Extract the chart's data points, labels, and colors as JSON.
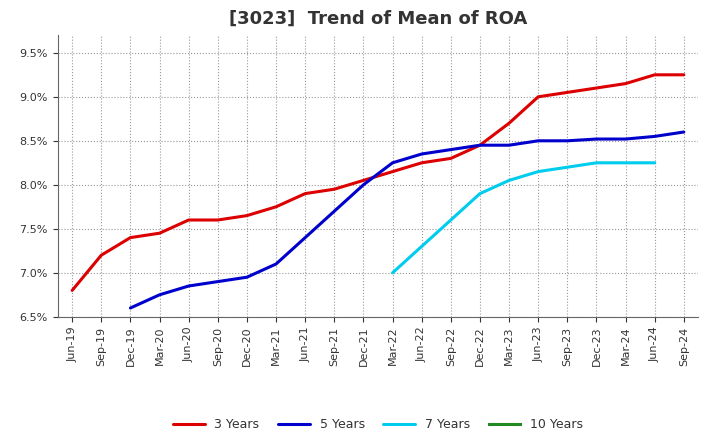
{
  "title": "[3023]  Trend of Mean of ROA",
  "background_color": "#ffffff",
  "grid_color": "#999999",
  "ylim": [
    0.065,
    0.097
  ],
  "yticks": [
    0.065,
    0.07,
    0.075,
    0.08,
    0.085,
    0.09,
    0.095
  ],
  "x_labels": [
    "Jun-19",
    "Sep-19",
    "Dec-19",
    "Mar-20",
    "Jun-20",
    "Sep-20",
    "Dec-20",
    "Mar-21",
    "Jun-21",
    "Sep-21",
    "Dec-21",
    "Mar-22",
    "Jun-22",
    "Sep-22",
    "Dec-22",
    "Mar-23",
    "Jun-23",
    "Sep-23",
    "Dec-23",
    "Mar-24",
    "Jun-24",
    "Sep-24"
  ],
  "series": [
    {
      "label": "3 Years",
      "color": "#dd0000",
      "data_x": [
        0,
        1,
        2,
        3,
        4,
        5,
        6,
        7,
        8,
        9,
        10,
        11,
        12,
        13,
        14,
        15,
        16,
        17,
        18,
        19,
        20,
        21
      ],
      "data_y": [
        0.068,
        0.072,
        0.074,
        0.0745,
        0.076,
        0.076,
        0.0765,
        0.0775,
        0.079,
        0.0795,
        0.0805,
        0.0815,
        0.0825,
        0.083,
        0.0845,
        0.087,
        0.09,
        0.0905,
        0.091,
        0.0915,
        0.0925,
        0.0925
      ]
    },
    {
      "label": "5 Years",
      "color": "#0000cc",
      "data_x": [
        2,
        3,
        4,
        5,
        6,
        7,
        8,
        9,
        10,
        11,
        12,
        13,
        14,
        15,
        16,
        17,
        18,
        19,
        20,
        21
      ],
      "data_y": [
        0.066,
        0.0675,
        0.0685,
        0.069,
        0.0695,
        0.071,
        0.074,
        0.077,
        0.08,
        0.0825,
        0.0835,
        0.084,
        0.0845,
        0.0845,
        0.085,
        0.085,
        0.0852,
        0.0852,
        0.0855,
        0.086
      ]
    },
    {
      "label": "7 Years",
      "color": "#00ccee",
      "data_x": [
        11,
        12,
        13,
        14,
        15,
        16,
        17,
        18,
        19,
        20
      ],
      "data_y": [
        0.07,
        0.073,
        0.076,
        0.079,
        0.0805,
        0.0815,
        0.082,
        0.0825,
        0.0825,
        0.0825
      ]
    },
    {
      "label": "10 Years",
      "color": "#228822",
      "data_x": [],
      "data_y": []
    }
  ],
  "title_fontsize": 13,
  "tick_fontsize": 8,
  "line_width": 2.2
}
